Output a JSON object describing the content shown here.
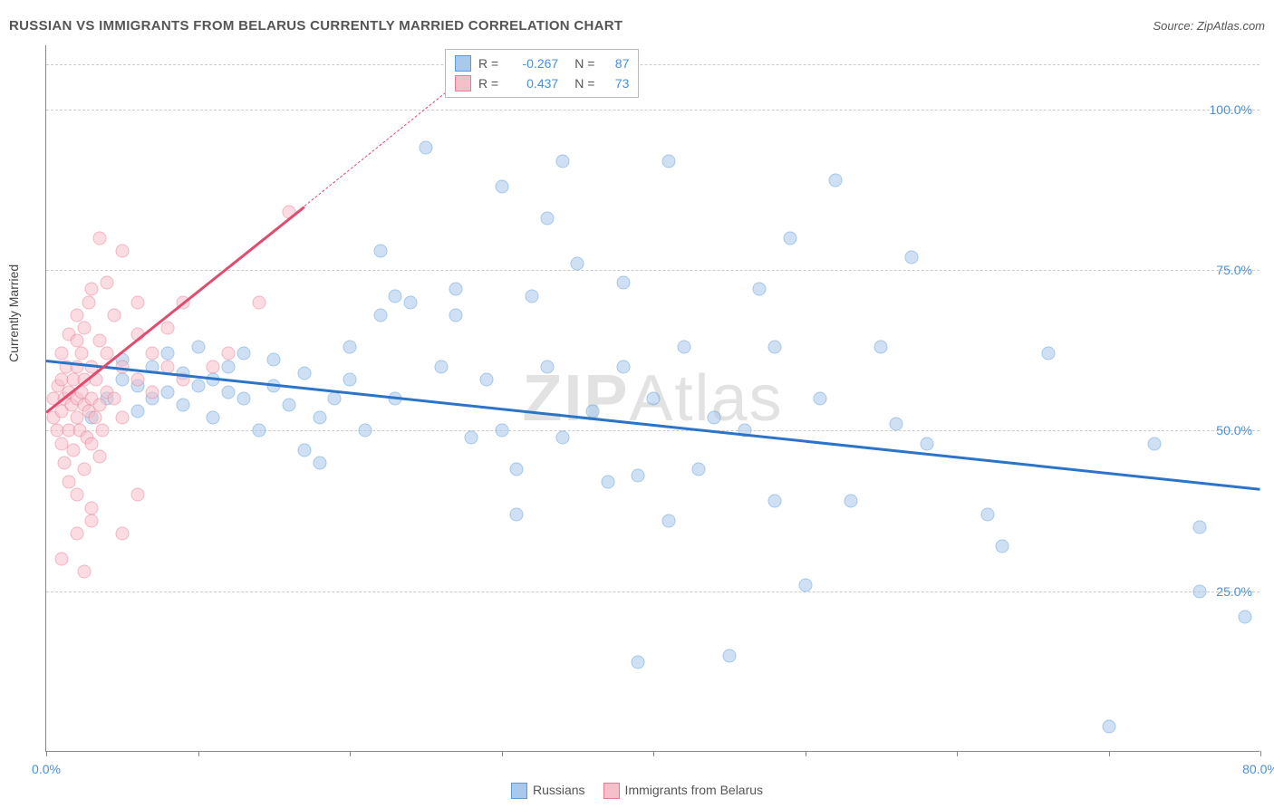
{
  "title": "RUSSIAN VS IMMIGRANTS FROM BELARUS CURRENTLY MARRIED CORRELATION CHART",
  "source": "Source: ZipAtlas.com",
  "watermark": {
    "prefix": "ZIP",
    "suffix": "Atlas"
  },
  "y_axis_title": "Currently Married",
  "chart": {
    "type": "scatter",
    "xlim": [
      0,
      80
    ],
    "ylim": [
      0,
      110
    ],
    "x_ticks": [
      0,
      10,
      20,
      30,
      40,
      50,
      60,
      70,
      80
    ],
    "x_tick_labels": {
      "0": "0.0%",
      "80": "80.0%"
    },
    "y_gridlines": [
      25,
      50,
      75,
      100,
      107
    ],
    "y_tick_labels": {
      "25": "25.0%",
      "50": "50.0%",
      "75": "75.0%",
      "100": "100.0%"
    },
    "background_color": "#ffffff",
    "grid_color": "#cccccc",
    "axis_color": "#888888",
    "label_color": "#4a90d9",
    "marker_radius": 7.5,
    "marker_opacity": 0.55
  },
  "series": [
    {
      "name": "Russians",
      "color_fill": "#a8c8ec",
      "color_stroke": "#5a9bd5",
      "R": "-0.267",
      "N": "87",
      "regression": {
        "x1": 0,
        "y1": 61,
        "x2": 80,
        "y2": 41,
        "color": "#2b74c7",
        "width": 2.5
      },
      "points": [
        [
          3,
          52
        ],
        [
          4,
          55
        ],
        [
          5,
          58
        ],
        [
          5,
          61
        ],
        [
          6,
          53
        ],
        [
          6,
          57
        ],
        [
          7,
          55
        ],
        [
          7,
          60
        ],
        [
          8,
          56
        ],
        [
          8,
          62
        ],
        [
          9,
          54
        ],
        [
          9,
          59
        ],
        [
          10,
          57
        ],
        [
          10,
          63
        ],
        [
          11,
          52
        ],
        [
          11,
          58
        ],
        [
          12,
          56
        ],
        [
          12,
          60
        ],
        [
          13,
          55
        ],
        [
          13,
          62
        ],
        [
          14,
          50
        ],
        [
          15,
          57
        ],
        [
          15,
          61
        ],
        [
          16,
          54
        ],
        [
          17,
          47
        ],
        [
          17,
          59
        ],
        [
          18,
          52
        ],
        [
          18,
          45
        ],
        [
          19,
          55
        ],
        [
          20,
          58
        ],
        [
          20,
          63
        ],
        [
          21,
          50
        ],
        [
          22,
          68
        ],
        [
          22,
          78
        ],
        [
          23,
          55
        ],
        [
          23,
          71
        ],
        [
          24,
          70
        ],
        [
          25,
          94
        ],
        [
          26,
          60
        ],
        [
          27,
          68
        ],
        [
          27,
          72
        ],
        [
          28,
          49
        ],
        [
          29,
          58
        ],
        [
          30,
          88
        ],
        [
          30,
          50
        ],
        [
          31,
          44
        ],
        [
          31,
          37
        ],
        [
          32,
          71
        ],
        [
          33,
          60
        ],
        [
          33,
          83
        ],
        [
          34,
          92
        ],
        [
          34,
          49
        ],
        [
          35,
          76
        ],
        [
          36,
          53
        ],
        [
          37,
          42
        ],
        [
          38,
          60
        ],
        [
          38,
          73
        ],
        [
          39,
          43
        ],
        [
          39,
          14
        ],
        [
          40,
          55
        ],
        [
          41,
          92
        ],
        [
          41,
          36
        ],
        [
          42,
          63
        ],
        [
          43,
          44
        ],
        [
          44,
          52
        ],
        [
          45,
          15
        ],
        [
          46,
          50
        ],
        [
          47,
          72
        ],
        [
          48,
          39
        ],
        [
          49,
          80
        ],
        [
          50,
          26
        ],
        [
          51,
          55
        ],
        [
          52,
          89
        ],
        [
          53,
          39
        ],
        [
          55,
          63
        ],
        [
          56,
          51
        ],
        [
          57,
          77
        ],
        [
          58,
          48
        ],
        [
          62,
          37
        ],
        [
          63,
          32
        ],
        [
          66,
          62
        ],
        [
          70,
          4
        ],
        [
          73,
          48
        ],
        [
          76,
          25
        ],
        [
          76,
          35
        ],
        [
          79,
          21
        ],
        [
          48,
          63
        ]
      ]
    },
    {
      "name": "Immigrants from Belarus",
      "color_fill": "#f6c0cb",
      "color_stroke": "#e87a94",
      "R": "0.437",
      "N": "73",
      "regression": {
        "x1": 0,
        "y1": 53,
        "x2": 17,
        "y2": 85,
        "color": "#e24a6e",
        "width": 2.5,
        "dashed_ext_to_x": 27,
        "dashed_ext_to_y": 104
      },
      "points": [
        [
          0.5,
          52
        ],
        [
          0.5,
          55
        ],
        [
          0.7,
          50
        ],
        [
          0.8,
          57
        ],
        [
          1,
          48
        ],
        [
          1,
          53
        ],
        [
          1,
          58
        ],
        [
          1,
          62
        ],
        [
          1.2,
          45
        ],
        [
          1.2,
          55
        ],
        [
          1.3,
          60
        ],
        [
          1.5,
          42
        ],
        [
          1.5,
          50
        ],
        [
          1.5,
          56
        ],
        [
          1.5,
          65
        ],
        [
          1.7,
          54
        ],
        [
          1.8,
          47
        ],
        [
          1.8,
          58
        ],
        [
          2,
          40
        ],
        [
          2,
          52
        ],
        [
          2,
          55
        ],
        [
          2,
          60
        ],
        [
          2,
          64
        ],
        [
          2,
          68
        ],
        [
          2.2,
          50
        ],
        [
          2.3,
          56
        ],
        [
          2.3,
          62
        ],
        [
          2.5,
          44
        ],
        [
          2.5,
          54
        ],
        [
          2.5,
          58
        ],
        [
          2.5,
          66
        ],
        [
          2.7,
          49
        ],
        [
          2.8,
          53
        ],
        [
          2.8,
          70
        ],
        [
          3,
          38
        ],
        [
          3,
          48
        ],
        [
          3,
          55
        ],
        [
          3,
          60
        ],
        [
          3,
          72
        ],
        [
          3.2,
          52
        ],
        [
          3.3,
          58
        ],
        [
          3.5,
          46
        ],
        [
          3.5,
          54
        ],
        [
          3.5,
          64
        ],
        [
          3.5,
          80
        ],
        [
          3.7,
          50
        ],
        [
          4,
          56
        ],
        [
          4,
          62
        ],
        [
          4,
          73
        ],
        [
          4.5,
          55
        ],
        [
          4.5,
          68
        ],
        [
          5,
          52
        ],
        [
          5,
          60
        ],
        [
          5,
          78
        ],
        [
          6,
          58
        ],
        [
          6,
          65
        ],
        [
          6,
          70
        ],
        [
          7,
          56
        ],
        [
          7,
          62
        ],
        [
          8,
          60
        ],
        [
          8,
          66
        ],
        [
          9,
          58
        ],
        [
          9,
          70
        ],
        [
          1,
          30
        ],
        [
          2,
          34
        ],
        [
          2.5,
          28
        ],
        [
          3,
          36
        ],
        [
          5,
          34
        ],
        [
          6,
          40
        ],
        [
          11,
          60
        ],
        [
          12,
          62
        ],
        [
          14,
          70
        ],
        [
          16,
          84
        ]
      ]
    }
  ],
  "legend_top": {
    "rows": [
      {
        "swatch": "blue",
        "r_label": "R =",
        "r_val": "-0.267",
        "n_label": "N =",
        "n_val": "87"
      },
      {
        "swatch": "pink",
        "r_label": "R =",
        "r_val": "0.437",
        "n_label": "N =",
        "n_val": "73"
      }
    ]
  },
  "legend_bottom": {
    "items": [
      {
        "swatch": "blue",
        "label": "Russians"
      },
      {
        "swatch": "pink",
        "label": "Immigrants from Belarus"
      }
    ]
  }
}
